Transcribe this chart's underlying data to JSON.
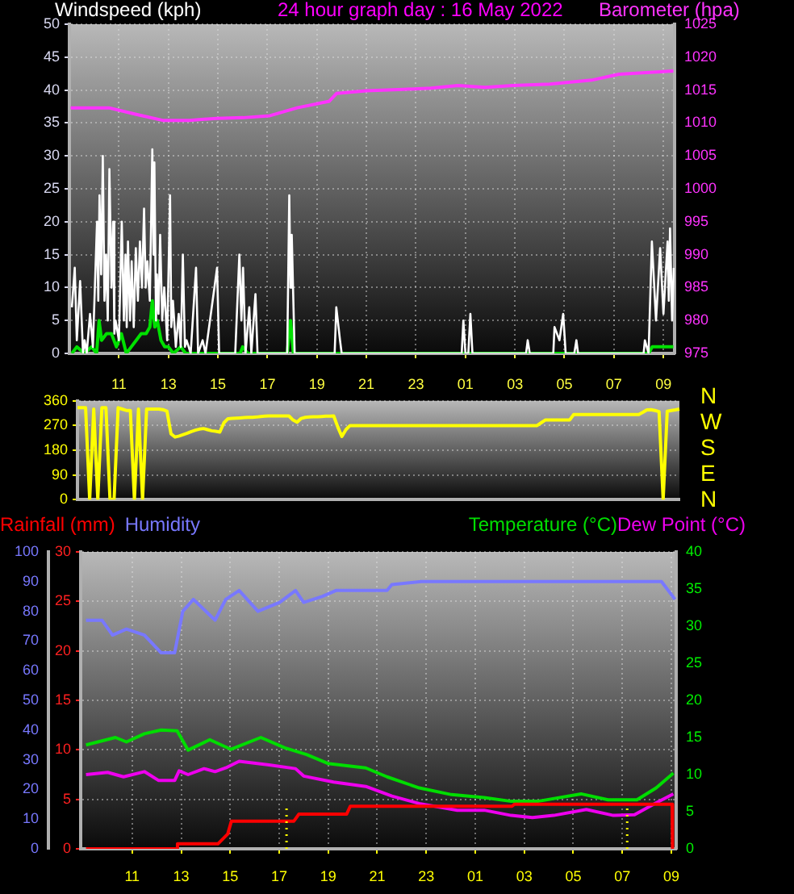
{
  "chart_data": [
    {
      "type": "line",
      "title": "24 hour graph day : 16 May 2022",
      "ylabel": "Windspeed (kph)",
      "y2label": "Barometer (hpa)",
      "xlim": [
        "2022-05-16T09:00",
        "2022-05-17T09:27"
      ],
      "xticks": [
        {
          "value": "2022-05-16T11:00",
          "label": "11"
        },
        {
          "value": "2022-05-16T13:00",
          "label": "13"
        },
        {
          "value": "2022-05-16T15:00",
          "label": "15"
        },
        {
          "value": "2022-05-16T17:00",
          "label": "17"
        },
        {
          "value": "2022-05-16T19:00",
          "label": "19"
        },
        {
          "value": "2022-05-16T21:00",
          "label": "21"
        },
        {
          "value": "2022-05-16T23:00",
          "label": "23"
        },
        {
          "value": "2022-05-17T01:00",
          "label": "01"
        },
        {
          "value": "2022-05-17T03:00",
          "label": "03"
        },
        {
          "value": "2022-05-17T05:00",
          "label": "05"
        },
        {
          "value": "2022-05-17T07:00",
          "label": "07"
        },
        {
          "value": "2022-05-17T09:00",
          "label": "09"
        }
      ],
      "ylim": [
        0,
        50
      ],
      "yticks": [
        0,
        5,
        10,
        15,
        20,
        25,
        30,
        35,
        40,
        45,
        50
      ],
      "y2lim": [
        975,
        1025
      ],
      "y2ticks": [
        975,
        980,
        985,
        990,
        995,
        1000,
        1005,
        1010,
        1015,
        1020,
        1025
      ],
      "grid": true,
      "marker": "none",
      "series": [
        {
          "color": "#ffffff",
          "x": [
            "2022-05-16T09:06",
            "2022-05-16T09:13",
            "2022-05-16T09:18",
            "2022-05-16T09:26",
            "2022-05-16T09:33",
            "2022-05-16T09:37",
            "2022-05-16T09:42",
            "2022-05-16T09:50",
            "2022-05-16T09:57",
            "2022-05-16T10:07",
            "2022-05-16T10:10",
            "2022-05-16T10:13",
            "2022-05-16T10:17",
            "2022-05-16T10:21",
            "2022-05-16T10:25",
            "2022-05-16T10:29",
            "2022-05-16T10:33",
            "2022-05-16T10:37",
            "2022-05-16T10:42",
            "2022-05-16T10:46",
            "2022-05-16T10:49",
            "2022-05-16T10:52",
            "2022-05-16T11:00",
            "2022-05-16T11:07",
            "2022-05-16T11:12",
            "2022-05-16T11:16",
            "2022-05-16T11:19",
            "2022-05-16T11:22",
            "2022-05-16T11:27",
            "2022-05-16T11:31",
            "2022-05-16T11:36",
            "2022-05-16T11:41",
            "2022-05-16T11:46",
            "2022-05-16T11:51",
            "2022-05-16T11:56",
            "2022-05-16T12:01",
            "2022-05-16T12:05",
            "2022-05-16T12:09",
            "2022-05-16T12:15",
            "2022-05-16T12:21",
            "2022-05-16T12:24",
            "2022-05-16T12:26",
            "2022-05-16T12:30",
            "2022-05-16T12:32",
            "2022-05-16T12:36",
            "2022-05-16T12:40",
            "2022-05-16T12:45",
            "2022-05-16T12:50",
            "2022-05-16T12:57",
            "2022-05-16T13:04",
            "2022-05-16T13:07",
            "2022-05-16T13:11",
            "2022-05-16T13:18",
            "2022-05-16T13:25",
            "2022-05-16T13:30",
            "2022-05-16T13:35",
            "2022-05-16T13:40",
            "2022-05-16T13:44",
            "2022-05-16T13:54",
            "2022-05-16T14:07",
            "2022-05-16T14:12",
            "2022-05-16T14:23",
            "2022-05-16T14:30",
            "2022-05-16T14:58",
            "2022-05-16T15:03",
            "2022-05-16T15:42",
            "2022-05-16T15:52",
            "2022-05-16T15:57",
            "2022-05-16T16:01",
            "2022-05-16T16:07",
            "2022-05-16T16:16",
            "2022-05-16T16:21",
            "2022-05-16T16:31",
            "2022-05-16T16:36",
            "2022-05-16T17:48",
            "2022-05-16T17:53",
            "2022-05-16T17:56",
            "2022-05-16T17:59",
            "2022-05-16T18:06",
            "2022-05-16T19:43",
            "2022-05-16T19:47",
            "2022-05-16T19:56",
            "2022-05-16T20:00",
            "2022-05-17T00:51",
            "2022-05-17T00:55",
            "2022-05-17T01:00",
            "2022-05-17T01:07",
            "2022-05-17T01:12",
            "2022-05-17T01:17",
            "2022-05-17T03:27",
            "2022-05-17T03:31",
            "2022-05-17T03:36",
            "2022-05-17T04:33",
            "2022-05-17T04:36",
            "2022-05-17T04:48",
            "2022-05-17T04:57",
            "2022-05-17T05:03",
            "2022-05-17T05:24",
            "2022-05-17T05:29",
            "2022-05-17T05:33",
            "2022-05-17T08:12",
            "2022-05-17T08:15",
            "2022-05-17T08:24",
            "2022-05-17T08:32",
            "2022-05-17T08:42",
            "2022-05-17T08:52",
            "2022-05-17T09:00",
            "2022-05-17T09:10",
            "2022-05-17T09:13",
            "2022-05-17T09:16",
            "2022-05-17T09:21",
            "2022-05-17T09:25"
          ],
          "values": [
            7,
            13,
            2,
            11,
            0,
            2,
            0,
            6,
            1,
            20,
            8,
            24,
            12,
            30,
            8,
            15,
            5,
            28,
            10,
            20,
            3,
            5,
            2,
            20,
            5,
            15,
            4,
            17,
            5,
            14,
            4,
            16,
            8,
            17,
            10,
            22,
            10,
            14,
            8,
            31,
            15,
            29,
            5,
            12,
            6,
            18,
            5,
            10,
            2,
            24,
            4,
            8,
            1,
            6,
            1,
            15,
            1,
            2,
            0,
            13,
            0,
            2,
            0,
            13,
            0,
            0,
            15,
            5,
            13,
            0,
            7,
            0,
            9,
            0,
            0,
            24,
            10,
            18,
            0,
            0,
            7,
            2,
            0,
            0,
            5,
            0,
            0,
            6,
            0,
            0,
            2,
            0,
            0,
            4,
            2,
            6,
            0,
            0,
            2,
            0,
            0,
            2,
            0,
            17,
            5,
            16,
            6,
            17,
            8,
            19,
            5,
            13
          ]
        },
        {
          "color": "#00e000",
          "x": [
            "2022-05-16T09:06",
            "2022-05-16T09:18",
            "2022-05-16T09:36",
            "2022-05-16T09:54",
            "2022-05-16T10:06",
            "2022-05-16T10:12",
            "2022-05-16T10:18",
            "2022-05-16T10:30",
            "2022-05-16T10:42",
            "2022-05-16T10:54",
            "2022-05-16T11:06",
            "2022-05-16T11:18",
            "2022-05-16T11:30",
            "2022-05-16T11:42",
            "2022-05-16T11:54",
            "2022-05-16T12:06",
            "2022-05-16T12:15",
            "2022-05-16T12:21",
            "2022-05-16T12:27",
            "2022-05-16T12:33",
            "2022-05-16T12:42",
            "2022-05-16T12:51",
            "2022-05-16T13:00",
            "2022-05-16T13:12",
            "2022-05-16T13:30",
            "2022-05-16T13:42",
            "2022-05-16T15:54",
            "2022-05-16T16:00",
            "2022-05-16T16:12",
            "2022-05-16T17:48",
            "2022-05-16T17:56",
            "2022-05-16T18:03",
            "2022-05-17T08:24",
            "2022-05-17T08:33",
            "2022-05-17T08:48",
            "2022-05-17T09:24"
          ],
          "values": [
            0,
            1,
            0,
            1,
            0,
            5,
            2,
            3,
            3,
            1,
            3,
            0,
            1,
            2,
            3,
            3,
            4,
            8,
            4,
            5,
            2,
            1,
            1,
            0,
            1,
            0,
            0,
            1,
            0,
            0,
            5,
            0,
            0,
            1,
            1,
            1
          ]
        },
        {
          "color": "#ff33ff",
          "axis": "y2",
          "x": [
            "2022-05-16T09:03",
            "2022-05-16T10:36",
            "2022-05-16T11:42",
            "2022-05-16T12:46",
            "2022-05-16T13:51",
            "2022-05-16T14:56",
            "2022-05-16T16:01",
            "2022-05-16T17:06",
            "2022-05-16T18:12",
            "2022-05-16T19:30",
            "2022-05-16T19:48",
            "2022-05-16T21:00",
            "2022-05-16T22:30",
            "2022-05-16T23:36",
            "2022-05-17T00:42",
            "2022-05-17T01:48",
            "2022-05-17T02:54",
            "2022-05-17T04:24",
            "2022-05-17T06:06",
            "2022-05-17T07:12",
            "2022-05-17T09:24"
          ],
          "values": [
            1012.3,
            1012.3,
            1011.3,
            1010.4,
            1010.4,
            1010.7,
            1010.8,
            1011.1,
            1012.3,
            1013.3,
            1014.5,
            1014.9,
            1015.1,
            1015.3,
            1015.7,
            1015.4,
            1015.7,
            1015.9,
            1016.5,
            1017.4,
            1017.9
          ]
        }
      ]
    },
    {
      "type": "line",
      "categories": [
        null,
        null,
        null,
        null,
        null,
        null,
        null,
        null,
        null,
        null,
        null,
        null,
        null,
        null,
        null,
        null,
        null,
        null,
        null,
        null,
        null,
        null,
        null,
        null,
        null,
        null,
        null,
        null,
        null,
        null,
        null,
        null,
        null,
        null,
        null,
        null,
        null,
        null,
        null,
        null,
        null,
        null,
        null,
        null,
        null,
        null,
        null,
        null,
        null,
        null,
        null,
        null,
        null,
        null,
        null,
        null,
        null,
        null,
        null,
        null,
        null,
        null,
        null,
        null,
        null,
        null,
        null,
        null,
        null,
        null,
        null,
        null,
        null,
        null,
        null,
        null,
        null,
        null,
        null,
        null,
        null,
        null,
        null,
        null,
        null,
        null,
        null,
        null,
        null,
        null,
        null,
        null,
        null,
        null,
        null,
        null,
        null,
        null,
        null,
        null,
        null,
        null,
        null,
        null,
        null,
        null,
        null,
        null,
        null,
        null,
        null,
        null,
        null,
        null,
        null,
        null,
        null,
        null,
        null,
        null,
        null,
        null,
        null,
        null,
        null,
        null,
        null,
        null,
        null,
        null,
        null,
        null,
        null,
        null,
        null,
        null,
        null,
        null,
        null,
        null,
        null,
        null,
        null,
        null,
        null,
        null,
        null,
        null,
        null
      ],
      "ylim": [
        0,
        360
      ],
      "yticks": [
        0,
        90,
        180,
        270,
        360
      ],
      "annotations": [
        "N",
        "W",
        "S",
        "E",
        "N"
      ],
      "grid": true,
      "marker": "none",
      "series": [
        {
          "color": "#ffff00",
          "values": [
            335,
            335,
            335,
            0,
            330,
            0,
            335,
            335,
            0,
            0,
            335,
            330,
            325,
            325,
            0,
            330,
            0,
            330,
            330,
            330,
            330,
            328,
            322,
            240,
            228,
            232,
            237,
            242,
            248,
            253,
            257,
            259,
            255,
            251,
            249,
            246,
            280,
            295,
            296,
            297,
            298,
            299,
            300,
            300,
            301,
            303,
            304,
            305,
            305,
            305,
            305,
            305,
            305,
            290,
            282,
            296,
            300,
            301,
            302,
            302,
            303,
            304,
            304,
            305,
            265,
            230,
            255,
            270,
            270,
            270,
            270,
            270,
            270,
            270,
            270,
            270,
            270,
            270,
            270,
            270,
            270,
            270,
            270,
            270,
            270,
            270,
            270,
            270,
            270,
            270,
            270,
            270,
            270,
            270,
            270,
            270,
            270,
            270,
            270,
            270,
            270,
            270,
            270,
            270,
            270,
            270,
            270,
            270,
            270,
            270,
            270,
            270,
            270,
            270,
            280,
            290,
            290,
            290,
            290,
            290,
            290,
            290,
            310,
            310,
            310,
            310,
            310,
            310,
            310,
            310,
            310,
            310,
            310,
            310,
            310,
            310,
            310,
            310,
            310,
            318,
            327,
            328,
            325,
            321,
            0,
            322,
            325,
            327,
            330
          ]
        }
      ]
    },
    {
      "type": "line",
      "xlim": [
        "2022-05-16T08:54",
        "2022-05-17T09:12"
      ],
      "xticks": [
        {
          "value": "2022-05-16T11:00",
          "label": "11"
        },
        {
          "value": "2022-05-16T13:00",
          "label": "13"
        },
        {
          "value": "2022-05-16T15:00",
          "label": "15"
        },
        {
          "value": "2022-05-16T17:00",
          "label": "17"
        },
        {
          "value": "2022-05-16T19:00",
          "label": "19"
        },
        {
          "value": "2022-05-16T21:00",
          "label": "21"
        },
        {
          "value": "2022-05-16T23:00",
          "label": "23"
        },
        {
          "value": "2022-05-17T01:00",
          "label": "01"
        },
        {
          "value": "2022-05-17T03:00",
          "label": "03"
        },
        {
          "value": "2022-05-17T05:00",
          "label": "05"
        },
        {
          "value": "2022-05-17T07:00",
          "label": "07"
        },
        {
          "value": "2022-05-17T09:00",
          "label": "09"
        }
      ],
      "ylim": [
        0,
        30
      ],
      "yticks": [
        0,
        5,
        10,
        15,
        20,
        25,
        30
      ],
      "y3lim": [
        0,
        100
      ],
      "y3ticks": [
        0,
        10,
        20,
        30,
        40,
        50,
        60,
        70,
        80,
        90,
        100
      ],
      "y2lim": [
        0,
        40
      ],
      "y2ticks": [
        0,
        5,
        10,
        15,
        20,
        25,
        30,
        35,
        40
      ],
      "grid": true,
      "marker": "none",
      "legend": "top",
      "ref_lines": [
        {
          "axis": "x",
          "value": "2022-05-16T17:18",
          "color": "#ffff00",
          "line_style": "dotted"
        },
        {
          "axis": "x",
          "value": "2022-05-17T07:12",
          "color": "#ffff00",
          "line_style": "dotted"
        }
      ],
      "series": [
        {
          "name": "Rainfall (mm)",
          "color": "#ff0000",
          "x": [
            "2022-05-16T09:07",
            "2022-05-16T12:48",
            "2022-05-16T12:51",
            "2022-05-16T14:30",
            "2022-05-16T14:54",
            "2022-05-16T15:03",
            "2022-05-16T17:36",
            "2022-05-16T17:48",
            "2022-05-16T19:45",
            "2022-05-16T19:54",
            "2022-05-17T02:30",
            "2022-05-17T02:36",
            "2022-05-17T09:02",
            "2022-05-17T09:03"
          ],
          "values": [
            0,
            0,
            0.5,
            0.5,
            1.5,
            2.8,
            2.8,
            3.5,
            3.5,
            4.3,
            4.3,
            4.5,
            4.5,
            0
          ]
        },
        {
          "name": "Humidity",
          "color": "#7878ff",
          "axis": "y3",
          "x": [
            "2022-05-16T09:07",
            "2022-05-16T09:46",
            "2022-05-16T10:12",
            "2022-05-16T10:46",
            "2022-05-16T11:30",
            "2022-05-16T12:11",
            "2022-05-16T12:44",
            "2022-05-16T13:04",
            "2022-05-16T13:30",
            "2022-05-16T14:23",
            "2022-05-16T14:49",
            "2022-05-16T15:22",
            "2022-05-16T16:08",
            "2022-05-16T17:01",
            "2022-05-16T17:40",
            "2022-05-16T18:00",
            "2022-05-16T18:46",
            "2022-05-16T19:19",
            "2022-05-16T21:24",
            "2022-05-16T21:36",
            "2022-05-16T22:48",
            "2022-05-17T08:36",
            "2022-05-17T09:09"
          ],
          "values": [
            77,
            77,
            72,
            74,
            72,
            66,
            66,
            80,
            84,
            77,
            84,
            87,
            80,
            83,
            87,
            83,
            85,
            87,
            87,
            89,
            90,
            90,
            84
          ]
        },
        {
          "name": "Temperature (°C)",
          "color": "#00dd00",
          "axis": "y2",
          "x": [
            "2022-05-16T09:07",
            "2022-05-16T10:19",
            "2022-05-16T10:46",
            "2022-05-16T11:30",
            "2022-05-16T12:11",
            "2022-05-16T12:50",
            "2022-05-16T13:17",
            "2022-05-16T14:10",
            "2022-05-16T15:02",
            "2022-05-16T16:15",
            "2022-05-16T17:14",
            "2022-05-16T18:07",
            "2022-05-16T18:59",
            "2022-05-16T20:32",
            "2022-05-16T21:24",
            "2022-05-16T22:43",
            "2022-05-17T00:02",
            "2022-05-17T01:22",
            "2022-05-17T02:28",
            "2022-05-17T03:33",
            "2022-05-17T05:19",
            "2022-05-17T06:25",
            "2022-05-17T07:36",
            "2022-05-17T08:23",
            "2022-05-17T09:05"
          ],
          "values": [
            14.0,
            15.0,
            14.4,
            15.5,
            16.0,
            15.9,
            13.3,
            14.7,
            13.4,
            15.0,
            13.6,
            12.7,
            11.5,
            10.9,
            9.7,
            8.2,
            7.3,
            6.9,
            6.4,
            6.4,
            7.4,
            6.6,
            6.6,
            8.2,
            10.2
          ]
        },
        {
          "name": "Dew Point (°C)",
          "color": "#ee00ee",
          "axis": "y2",
          "x": [
            "2022-05-16T09:07",
            "2022-05-16T10:00",
            "2022-05-16T10:39",
            "2022-05-16T11:30",
            "2022-05-16T12:05",
            "2022-05-16T12:44",
            "2022-05-16T12:55",
            "2022-05-16T13:17",
            "2022-05-16T13:56",
            "2022-05-16T14:23",
            "2022-05-16T14:49",
            "2022-05-16T15:22",
            "2022-05-16T16:35",
            "2022-05-16T17:40",
            "2022-05-16T18:00",
            "2022-05-16T19:13",
            "2022-05-16T20:32",
            "2022-05-16T21:36",
            "2022-05-16T22:43",
            "2022-05-17T00:16",
            "2022-05-17T01:22",
            "2022-05-17T02:28",
            "2022-05-17T03:20",
            "2022-05-17T04:12",
            "2022-05-17T05:32",
            "2022-05-17T06:38",
            "2022-05-17T07:30",
            "2022-05-17T08:23",
            "2022-05-17T09:05"
          ],
          "values": [
            10.0,
            10.3,
            9.7,
            10.4,
            9.2,
            9.2,
            10.5,
            10.0,
            10.8,
            10.4,
            10.9,
            11.8,
            11.3,
            10.8,
            9.8,
            9.0,
            8.4,
            7.1,
            6.1,
            5.2,
            5.2,
            4.5,
            4.2,
            4.5,
            5.3,
            4.5,
            4.6,
            6.2,
            7.4
          ]
        }
      ]
    }
  ]
}
